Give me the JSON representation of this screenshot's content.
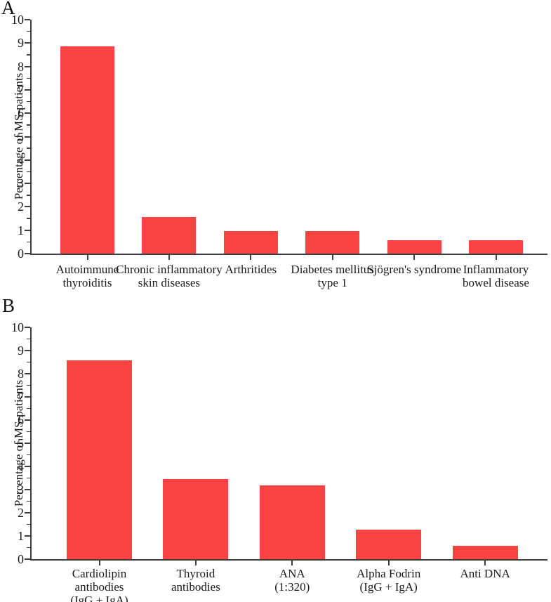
{
  "chart_data": [
    {
      "panel_label": "A",
      "type": "bar",
      "title": "",
      "xlabel": "",
      "ylabel": "Percentage of MS-patients",
      "ylim": [
        0,
        10
      ],
      "ytick_step": 1,
      "yminor_tick_step": 0.5,
      "grid": false,
      "legend": "none",
      "bar_color": "#f84343",
      "axis_color": "#3f3f3f",
      "categories": [
        "Autoimmune thyroiditis",
        "Chronic inflammatory skin diseases",
        "Arthritides",
        "Diabetes mellitus type 1",
        "Sjögren's syndrome",
        "Inflammatory bowel disease"
      ],
      "category_label_lines": [
        [
          "Autoimmune",
          "thyroiditis"
        ],
        [
          "Chronic inflammatory",
          "skin diseases"
        ],
        [
          "Arthritides"
        ],
        [
          "Diabetes mellitus",
          "type 1"
        ],
        [
          "Sjögren's syndrome"
        ],
        [
          "Inflammatory",
          "bowel disease"
        ]
      ],
      "values": [
        8.9,
        1.6,
        1.0,
        1.0,
        0.6,
        0.6
      ]
    },
    {
      "panel_label": "B",
      "type": "bar",
      "title": "",
      "xlabel": "",
      "ylabel": "Percentage of MS-patients",
      "ylim": [
        0,
        10
      ],
      "ytick_step": 1,
      "yminor_tick_step": 0.5,
      "grid": false,
      "legend": "none",
      "bar_color": "#f84343",
      "axis_color": "#3f3f3f",
      "categories": [
        "Cardiolipin antibodies (IgG + IgA)",
        "Thyroid antibodies",
        "ANA (1:320)",
        "Alpha Fodrin (IgG + IgA)",
        "Anti DNA"
      ],
      "category_label_lines": [
        [
          "Cardiolipin",
          "antibodies",
          "(IgG + IgA)"
        ],
        [
          "Thyroid",
          "antibodies"
        ],
        [
          "ANA",
          "(1:320)"
        ],
        [
          "Alpha Fodrin",
          "(IgG + IgA)"
        ],
        [
          "Anti DNA"
        ]
      ],
      "values": [
        8.6,
        3.5,
        3.2,
        1.3,
        0.6
      ]
    }
  ]
}
